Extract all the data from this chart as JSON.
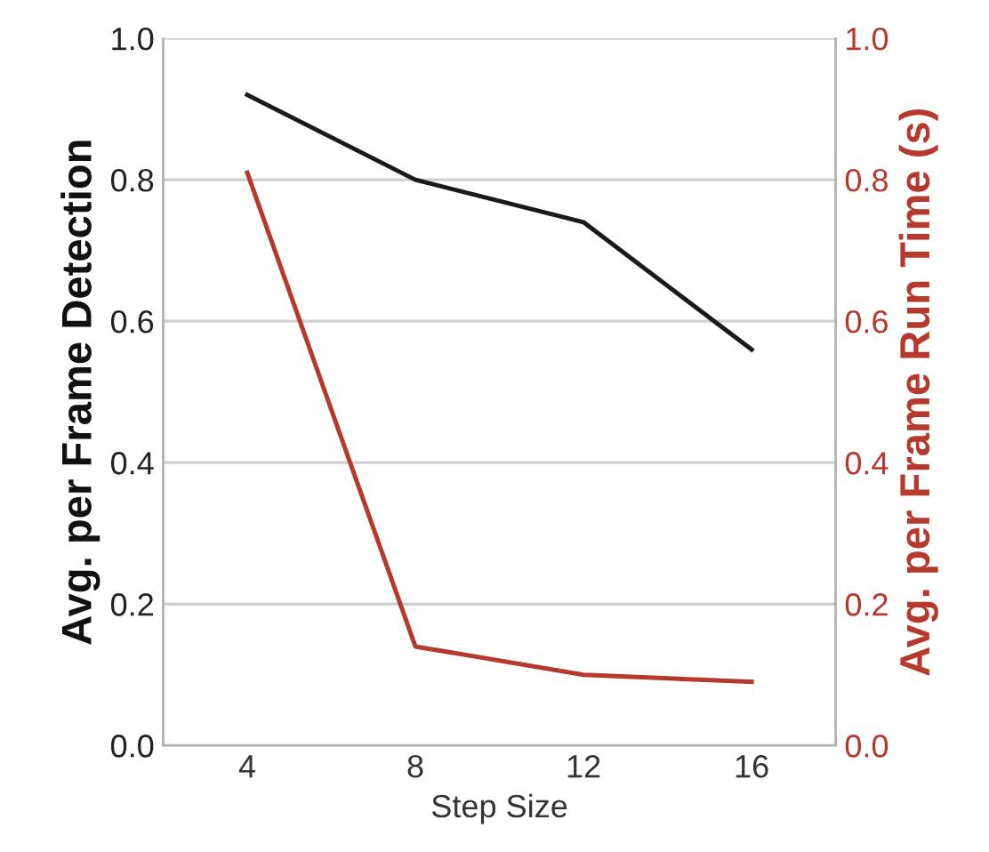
{
  "chart_data": {
    "type": "line",
    "xlabel": "Step Size",
    "ylabel": "Avg. per Frame Detection",
    "y2label": "Avg. per Frame Run Time (s)",
    "x": [
      4,
      8,
      12,
      16
    ],
    "series": [
      {
        "color": "#1a1a1a",
        "values": [
          0.92,
          0.8,
          0.74,
          0.56
        ]
      },
      {
        "color": "#b5392c",
        "values": [
          0.81,
          0.14,
          0.1,
          0.09
        ],
        "axis": "y2"
      }
    ],
    "xlim": [
      2,
      18
    ],
    "xticks": [
      4,
      8,
      12,
      16
    ],
    "ylim": [
      0,
      1
    ],
    "yticks": [
      {
        "value": 0,
        "label": "0.0"
      },
      {
        "value": 0.2,
        "label": "0.2"
      },
      {
        "value": 0.4,
        "label": "0.4"
      },
      {
        "value": 0.6,
        "label": "0.6"
      },
      {
        "value": 0.8,
        "label": "0.8"
      },
      {
        "value": 1,
        "label": "1.0"
      }
    ],
    "y2lim": [
      0,
      1
    ],
    "y2ticks": [
      {
        "value": 0,
        "label": "0.0"
      },
      {
        "value": 0.2,
        "label": "0.2"
      },
      {
        "value": 0.4,
        "label": "0.4"
      },
      {
        "value": 0.6,
        "label": "0.6"
      },
      {
        "value": 0.8,
        "label": "0.8"
      },
      {
        "value": 1,
        "label": "1.0"
      }
    ],
    "grid": "y",
    "marker": "none",
    "line_style": "solid"
  }
}
